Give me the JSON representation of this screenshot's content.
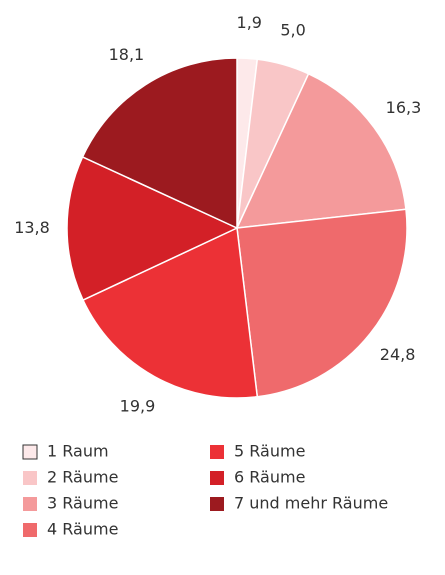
{
  "chart_data": {
    "type": "pie",
    "categories": [
      "1 Raum",
      "2 Räume",
      "3 Räume",
      "4 Räume",
      "5 Räume",
      "6 Räume",
      "7 und mehr Räume"
    ],
    "values": [
      1.9,
      5.0,
      16.3,
      24.8,
      19.9,
      13.8,
      18.1
    ],
    "value_labels": [
      "1,9",
      "5,0",
      "16,3",
      "24,8",
      "19,9",
      "13,8",
      "18,1"
    ],
    "colors": [
      "#fde9ea",
      "#f9c6c7",
      "#f49a9b",
      "#ef6a6c",
      "#ec3136",
      "#d32027",
      "#9c1a1f"
    ]
  }
}
